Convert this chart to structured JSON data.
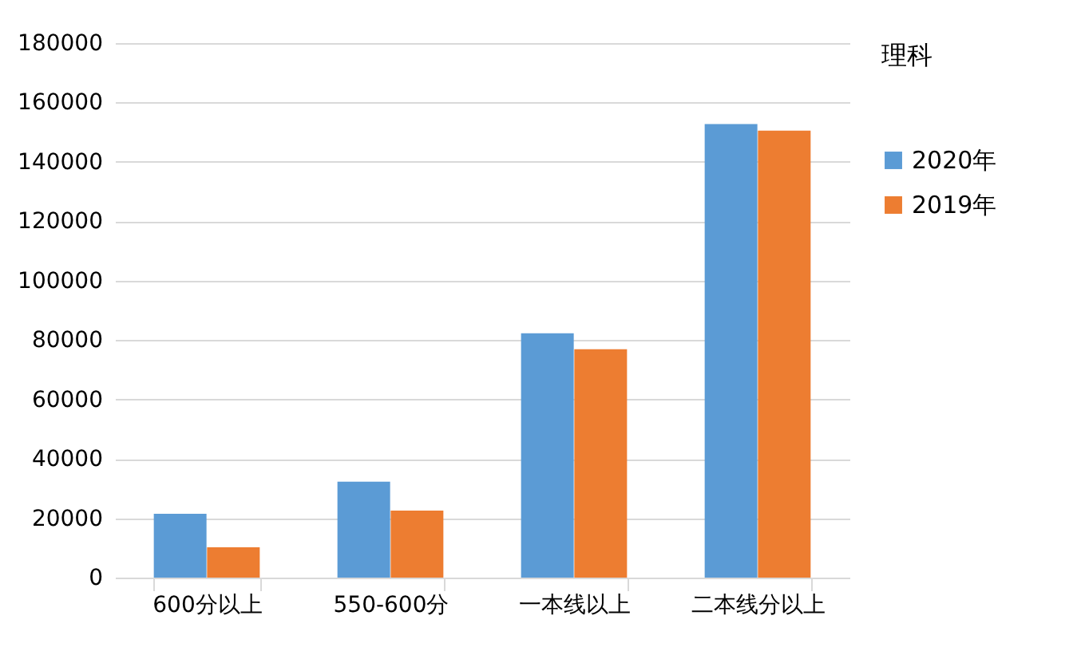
{
  "chart_data": {
    "type": "bar",
    "legend_title": "理科",
    "categories": [
      "600分以上",
      "550-600分",
      "一本线以上",
      "二本线分以上"
    ],
    "series": [
      {
        "name": "2020年",
        "color": "#5b9bd5",
        "values": [
          21500,
          32300,
          82300,
          152700
        ]
      },
      {
        "name": "2019年",
        "color": "#ed7d31",
        "values": [
          10200,
          22600,
          76900,
          150500
        ]
      }
    ],
    "ylim": [
      0,
      180000
    ],
    "yticks": [
      0,
      20000,
      40000,
      60000,
      80000,
      100000,
      120000,
      140000,
      160000,
      180000
    ],
    "grid": "y",
    "legend": "right"
  }
}
